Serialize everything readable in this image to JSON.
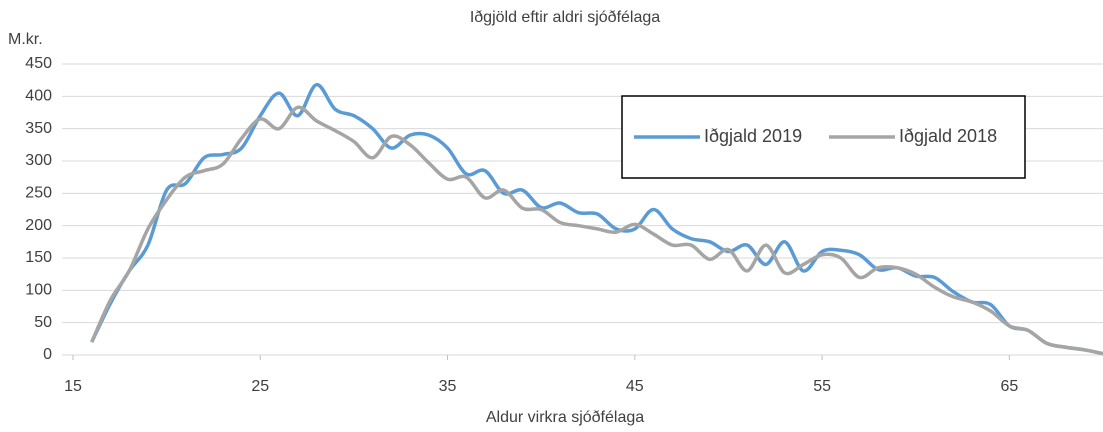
{
  "chart_data": {
    "type": "line",
    "title": "Iðgjöld eftir aldri sjóðfélaga",
    "y_unit_label": "M.kr.",
    "x_label": "Aldur virkra sjóðfélaga",
    "x": [
      16,
      17,
      18,
      19,
      20,
      21,
      22,
      23,
      24,
      25,
      26,
      27,
      28,
      29,
      30,
      31,
      32,
      33,
      34,
      35,
      36,
      37,
      38,
      39,
      40,
      41,
      42,
      43,
      44,
      45,
      46,
      47,
      48,
      49,
      50,
      51,
      52,
      53,
      54,
      55,
      56,
      57,
      58,
      59,
      60,
      61,
      62,
      63,
      64,
      65,
      66,
      67,
      68,
      69,
      70
    ],
    "series": [
      {
        "name": "Iðgjald 2019",
        "color": "#5b9bd5",
        "values": [
          20,
          80,
          130,
          170,
          255,
          265,
          305,
          310,
          320,
          370,
          405,
          370,
          418,
          380,
          370,
          350,
          320,
          340,
          340,
          320,
          280,
          285,
          250,
          255,
          228,
          235,
          220,
          218,
          195,
          195,
          225,
          195,
          180,
          175,
          160,
          170,
          140,
          175,
          130,
          160,
          162,
          155,
          132,
          135,
          122,
          120,
          98,
          82,
          78,
          45,
          38,
          18,
          12,
          8,
          2
        ]
      },
      {
        "name": "Iðgjald 2018",
        "color": "#a5a5a5",
        "values": [
          20,
          85,
          130,
          195,
          240,
          275,
          285,
          295,
          335,
          365,
          350,
          383,
          362,
          347,
          330,
          305,
          338,
          325,
          297,
          272,
          275,
          243,
          255,
          227,
          225,
          205,
          200,
          195,
          190,
          202,
          187,
          170,
          170,
          148,
          163,
          130,
          170,
          127,
          140,
          155,
          150,
          120,
          135,
          135,
          125,
          105,
          90,
          82,
          68,
          45,
          38,
          18,
          12,
          8,
          2
        ]
      }
    ],
    "xlim": [
      15,
      70
    ],
    "xticks": [
      15,
      25,
      35,
      45,
      55,
      65
    ],
    "ylim": [
      0,
      450
    ],
    "yticks": [
      0,
      50,
      100,
      150,
      200,
      250,
      300,
      350,
      400,
      450
    ],
    "grid": true,
    "legend": "upper right"
  }
}
